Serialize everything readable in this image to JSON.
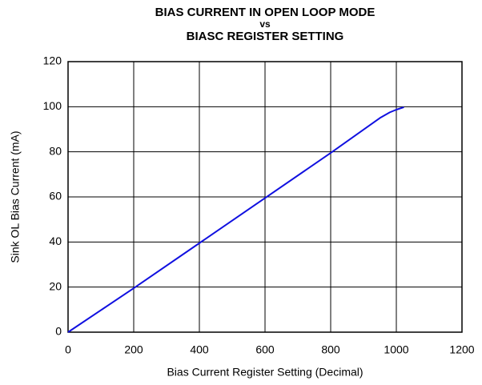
{
  "chart_data": {
    "type": "line",
    "title": [
      "BIAS CURRENT IN OPEN LOOP MODE",
      "vs",
      "BIASC REGISTER SETTING"
    ],
    "x_label": "Bias Current Register Setting (Decimal)",
    "y_label": "Sink OL Bias Current (mA)",
    "x": [
      0,
      200,
      400,
      600,
      800,
      950,
      980,
      1000,
      1023
    ],
    "series": [
      {
        "name": "Sink OL Bias Current",
        "color": "#1010e0",
        "values": [
          0,
          19.5,
          39.5,
          59.5,
          79.5,
          95,
          97.5,
          98.7,
          99.8
        ]
      }
    ],
    "xlim": [
      0,
      1200
    ],
    "xticks": [
      0,
      200,
      400,
      600,
      800,
      1000,
      1200
    ],
    "ylim": [
      0,
      120
    ],
    "yticks": [
      0,
      20,
      40,
      60,
      80,
      100,
      120
    ],
    "grid": true
  }
}
